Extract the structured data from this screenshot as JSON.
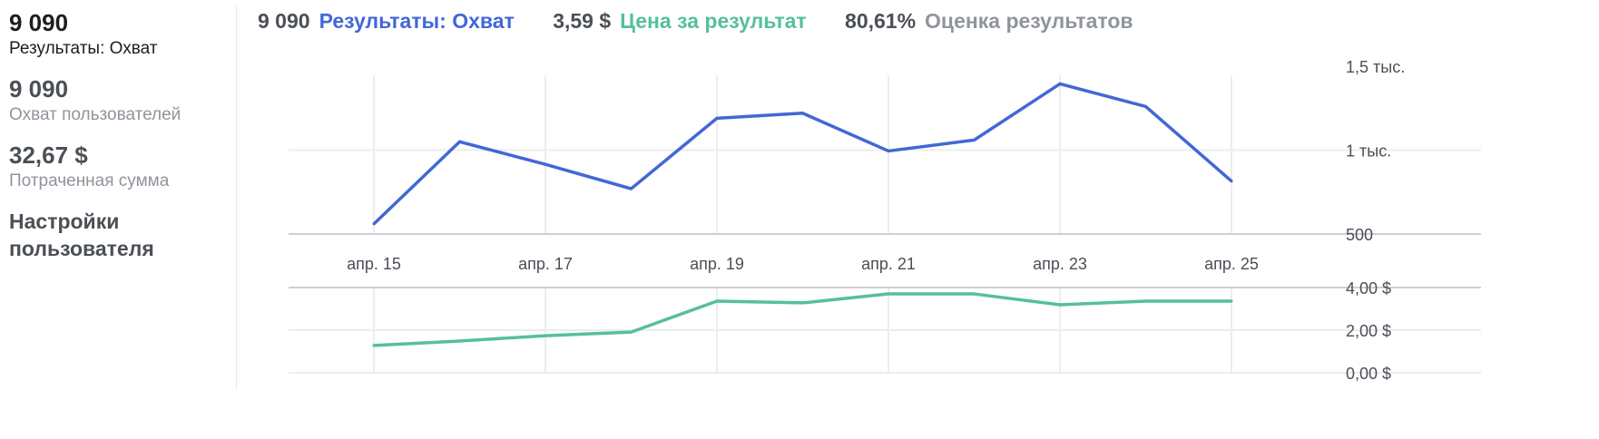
{
  "sidebar": {
    "results_value": "9 090",
    "results_label": "Результаты: Охват",
    "reach_value": "9 090",
    "reach_label": "Охват пользователей",
    "spent_value": "32,67 $",
    "spent_label": "Потраченная сумма",
    "settings_label": "Настройки пользователя"
  },
  "legend": [
    {
      "value": "9 090",
      "label": "Результаты: Охват",
      "color": "#4267d6"
    },
    {
      "value": "3,59 $",
      "label": "Цена за результат",
      "color": "#55bfa0"
    },
    {
      "value": "80,61%",
      "label": "Оценка результатов",
      "color": "#90949c"
    }
  ],
  "chart_data": [
    {
      "type": "line",
      "x": [
        "апр. 15",
        "апр. 16",
        "апр. 17",
        "апр. 18",
        "апр. 19",
        "апр. 20",
        "апр. 21",
        "апр. 22",
        "апр. 23",
        "апр. 24",
        "апр. 25"
      ],
      "x_tick_labels": [
        "апр. 15",
        "апр. 17",
        "апр. 19",
        "апр. 21",
        "апр. 23",
        "апр. 25"
      ],
      "series": [
        {
          "name": "Результаты: Охват",
          "color": "#4267d6",
          "values": [
            560,
            1050,
            915,
            770,
            1190,
            1220,
            995,
            1060,
            1395,
            1260,
            815
          ]
        }
      ],
      "ylim": [
        500,
        1500
      ],
      "y_ticks": [
        500,
        1000,
        1500
      ],
      "y_tick_labels": [
        "500",
        "1 тыс.",
        "1,5 тыс."
      ],
      "y_axis": "right",
      "grid": true
    },
    {
      "type": "line",
      "x": [
        "апр. 15",
        "апр. 16",
        "апр. 17",
        "апр. 18",
        "апр. 19",
        "апр. 20",
        "апр. 21",
        "апр. 22",
        "апр. 23",
        "апр. 24",
        "апр. 25"
      ],
      "series": [
        {
          "name": "Цена за результат",
          "color": "#55bfa0",
          "values": [
            1.28,
            1.49,
            1.74,
            1.91,
            3.36,
            3.28,
            3.7,
            3.7,
            3.19,
            3.36,
            3.36
          ]
        }
      ],
      "ylim": [
        0,
        4
      ],
      "y_ticks": [
        0,
        2,
        4
      ],
      "y_tick_labels": [
        "0,00 $",
        "2,00 $",
        "4,00 $"
      ],
      "y_axis": "right",
      "grid": true
    }
  ]
}
